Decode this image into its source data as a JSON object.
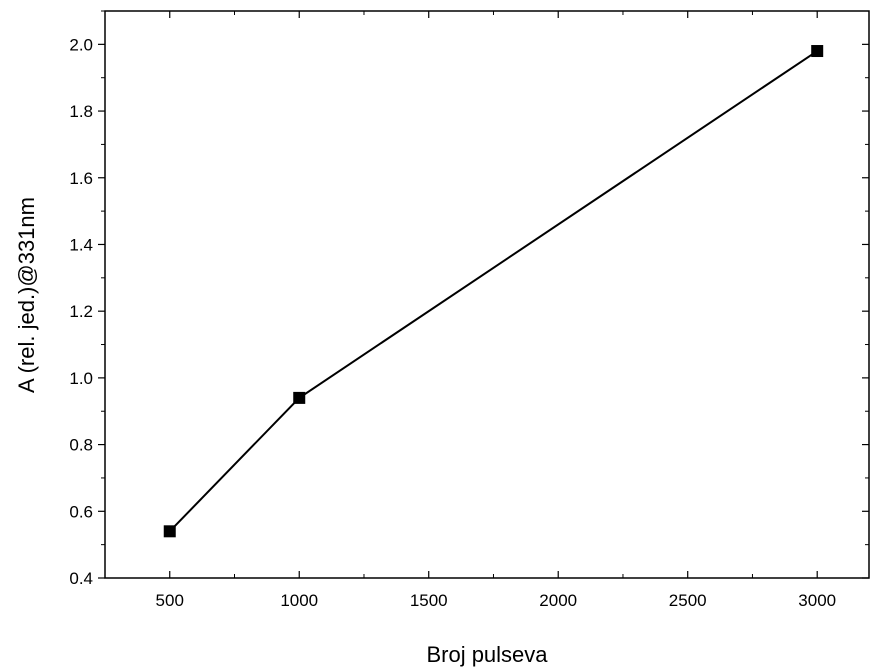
{
  "chart_data": {
    "type": "line",
    "title": "",
    "xlabel": "Broj pulseva",
    "ylabel": "A (rel. jed.)@331nm",
    "xlim": [
      250,
      3200
    ],
    "ylim": [
      0.4,
      2.1
    ],
    "x_ticks": [
      500,
      1000,
      1500,
      2000,
      2500,
      3000
    ],
    "x_tick_labels": [
      "500",
      "1000",
      "1500",
      "2000",
      "2500",
      "3000"
    ],
    "y_ticks": [
      0.4,
      0.6,
      0.8,
      1.0,
      1.2,
      1.4,
      1.6,
      1.8,
      2.0
    ],
    "y_tick_labels": [
      "0.4",
      "0.6",
      "0.8",
      "1.0",
      "1.2",
      "1.4",
      "1.6",
      "1.8",
      "2.0"
    ],
    "grid": false,
    "legend": "none",
    "marker": "square",
    "series": [
      {
        "x": [
          500,
          1000,
          3000
        ],
        "y": [
          0.54,
          0.94,
          1.98
        ],
        "color": "#000000"
      }
    ]
  }
}
